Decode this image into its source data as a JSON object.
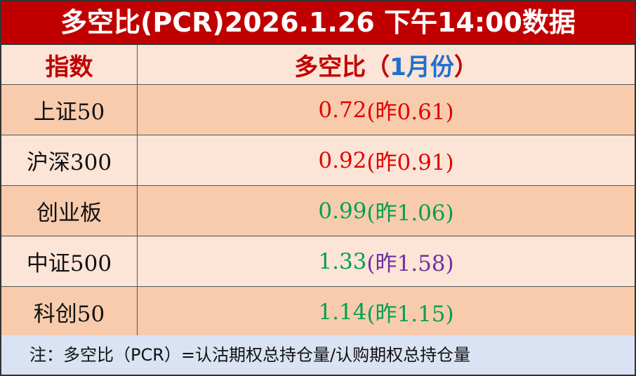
{
  "title": "多空比(PCR)2026.1.26 下午14:00数据",
  "header": {
    "index": "指数",
    "ratio_prefix": "多空比（",
    "ratio_month": "1月份",
    "ratio_suffix": "）"
  },
  "rows": [
    {
      "name": "上证50",
      "value": "0.72",
      "prev": "(昨0.61)"
    },
    {
      "name": "沪深300",
      "value": "0.92",
      "prev": "(昨0.91)"
    },
    {
      "name": "创业板",
      "value": "0.99",
      "prev": "(昨1.06)"
    },
    {
      "name": "中证500",
      "value": "1.33",
      "prev": "(昨1.58)"
    },
    {
      "name": "科创50",
      "value": "1.14",
      "prev": "(昨1.15)"
    }
  ],
  "footer": "注：多空比（PCR）=认沽期权总持仓量/认购期权总持仓量"
}
